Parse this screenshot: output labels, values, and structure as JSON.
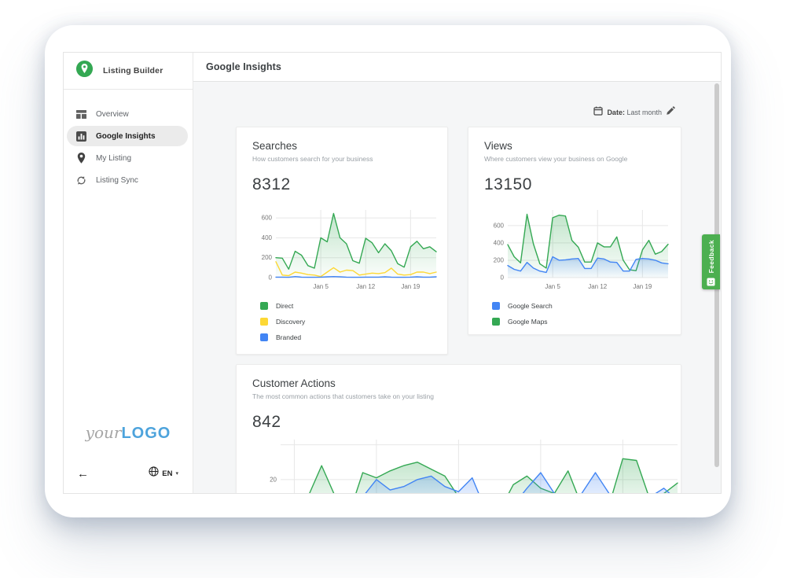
{
  "colors": {
    "brand_green": "#34a853",
    "accent_yellow": "#fdd835",
    "accent_blue": "#4285f4",
    "logo_blue": "#4da3dc",
    "feedback_green": "#4caf50"
  },
  "sidebar": {
    "brand": {
      "label": "Listing Builder",
      "icon": "map-pin-badge-icon"
    },
    "items": [
      {
        "label": "Overview",
        "icon": "dashboard-icon",
        "active": false
      },
      {
        "label": "Google Insights",
        "icon": "bar-chart-icon",
        "active": true
      },
      {
        "label": "My Listing",
        "icon": "map-pin-icon",
        "active": false
      },
      {
        "label": "Listing Sync",
        "icon": "sync-icon",
        "active": false
      }
    ],
    "footer": {
      "logo_prefix": "your",
      "logo_main": "LOGO",
      "back_arrow": "←",
      "language": "EN",
      "caret": "▾"
    }
  },
  "header": {
    "title": "Google Insights"
  },
  "toolbar": {
    "date_label": "Date:",
    "date_value": "Last month"
  },
  "feedback": {
    "label": "Feedback"
  },
  "chart_data": [
    {
      "type": "area",
      "title": "Searches",
      "subtitle": "How customers search for your business",
      "total": "8312",
      "ylim": [
        0,
        680
      ],
      "yticks": [
        {
          "value": 0,
          "label": "0"
        },
        {
          "value": 200,
          "label": "200"
        },
        {
          "value": 400,
          "label": "400"
        },
        {
          "value": 600,
          "label": "600"
        }
      ],
      "xticks": [
        {
          "index": 7,
          "label": "Jan 5"
        },
        {
          "index": 14,
          "label": "Jan 12"
        },
        {
          "index": 21,
          "label": "Jan 19"
        }
      ],
      "series": [
        {
          "name": "Direct",
          "color": "#34a853",
          "fill": true,
          "values": [
            200,
            195,
            85,
            265,
            225,
            120,
            95,
            400,
            360,
            645,
            400,
            340,
            170,
            145,
            395,
            350,
            250,
            340,
            270,
            140,
            105,
            310,
            365,
            290,
            310,
            260
          ]
        },
        {
          "name": "Discovery",
          "color": "#fdd835",
          "fill": false,
          "values": [
            160,
            25,
            20,
            55,
            45,
            30,
            25,
            10,
            55,
            100,
            55,
            75,
            70,
            25,
            35,
            45,
            40,
            50,
            95,
            35,
            25,
            30,
            55,
            55,
            40,
            55
          ]
        },
        {
          "name": "Branded",
          "color": "#4285f4",
          "fill": false,
          "values": [
            5,
            5,
            3,
            10,
            5,
            3,
            3,
            5,
            8,
            10,
            8,
            5,
            3,
            3,
            5,
            5,
            5,
            8,
            5,
            3,
            3,
            5,
            8,
            5,
            5,
            8
          ]
        }
      ],
      "legend": [
        {
          "label": "Direct",
          "color": "#34a853"
        },
        {
          "label": "Discovery",
          "color": "#fdd835"
        },
        {
          "label": "Branded",
          "color": "#4285f4"
        }
      ]
    },
    {
      "type": "area",
      "title": "Views",
      "subtitle": "Where customers view your business on Google",
      "total": "13150",
      "ylim": [
        0,
        780
      ],
      "yticks": [
        {
          "value": 0,
          "label": "0"
        },
        {
          "value": 200,
          "label": "200"
        },
        {
          "value": 400,
          "label": "400"
        },
        {
          "value": 600,
          "label": "600"
        }
      ],
      "xticks": [
        {
          "index": 7,
          "label": "Jan 5"
        },
        {
          "index": 14,
          "label": "Jan 12"
        },
        {
          "index": 21,
          "label": "Jan 19"
        }
      ],
      "series": [
        {
          "name": "Google Maps",
          "color": "#34a853",
          "fill": true,
          "values": [
            380,
            240,
            170,
            730,
            390,
            160,
            110,
            690,
            720,
            710,
            430,
            350,
            180,
            180,
            400,
            355,
            355,
            470,
            200,
            90,
            80,
            320,
            430,
            270,
            300,
            385
          ]
        },
        {
          "name": "Google Search",
          "color": "#4285f4",
          "fill": true,
          "values": [
            140,
            95,
            75,
            175,
            110,
            75,
            60,
            240,
            200,
            205,
            215,
            220,
            105,
            105,
            225,
            215,
            180,
            175,
            75,
            75,
            210,
            220,
            215,
            200,
            170,
            160
          ]
        }
      ],
      "legend": [
        {
          "label": "Google Search",
          "color": "#4285f4"
        },
        {
          "label": "Google Maps",
          "color": "#34a853"
        }
      ]
    },
    {
      "type": "area",
      "title": "Customer Actions",
      "subtitle": "The most common actions that customers take on your listing",
      "total": "842",
      "ylim": [
        0,
        43
      ],
      "yticks": [
        {
          "value": 20,
          "label": "20"
        },
        {
          "value": 40,
          "label": ""
        }
      ],
      "xticks": [
        {
          "index": 1,
          "label": ""
        },
        {
          "index": 7,
          "label": ""
        },
        {
          "index": 13,
          "label": ""
        },
        {
          "index": 19,
          "label": ""
        },
        {
          "index": 25,
          "label": ""
        }
      ],
      "series": [
        {
          "color": "#34a853",
          "fill": true,
          "values": [
            8,
            2,
            10,
            28,
            10,
            0,
            24,
            21,
            25,
            28,
            30,
            26,
            22,
            10,
            0,
            0,
            2,
            17,
            22,
            15,
            12,
            25,
            5,
            0,
            5,
            32,
            31,
            8,
            12,
            18
          ]
        },
        {
          "color": "#4285f4",
          "fill": true,
          "values": [
            0,
            0,
            2,
            8,
            1,
            0,
            10,
            20,
            14,
            16,
            20,
            22,
            16,
            13,
            21,
            2,
            0,
            5,
            15,
            24,
            12,
            9,
            12,
            24,
            12,
            0,
            3,
            10,
            15,
            8
          ]
        }
      ],
      "legend": []
    }
  ]
}
